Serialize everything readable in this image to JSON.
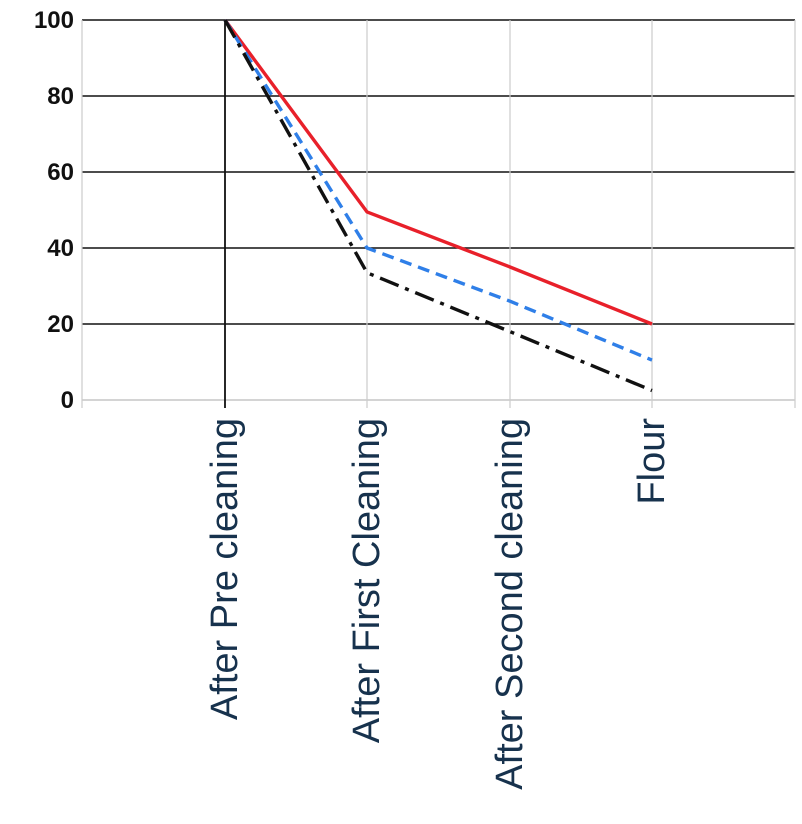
{
  "chart_data": {
    "type": "line",
    "categories": [
      "After Pre cleaning",
      "After First Cleaning",
      "After Second cleaning",
      "Flour"
    ],
    "series": [
      {
        "color": "#e8202a",
        "dash": "solid",
        "values": [
          100,
          49.5,
          35,
          20
        ]
      },
      {
        "color": "#2f7fe8",
        "dash": "dashed",
        "values": [
          100,
          40,
          26,
          10.5
        ]
      },
      {
        "color": "#111111",
        "dash": "dash-dot",
        "values": [
          100,
          33.5,
          18,
          2.5
        ]
      }
    ],
    "title": "",
    "xlabel": "",
    "ylabel": "",
    "ylim": [
      0,
      100
    ],
    "yticks": [
      "100",
      "80",
      "60",
      "40",
      "20",
      "0"
    ],
    "grid": true,
    "legend": "none"
  }
}
